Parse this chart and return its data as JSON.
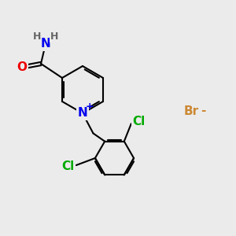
{
  "bg_color": "#ebebeb",
  "bond_color": "#000000",
  "bond_width": 1.5,
  "atom_colors": {
    "N": "#0000ee",
    "O": "#ee0000",
    "Cl": "#00aa00",
    "Br": "#cc8833",
    "H": "#666666",
    "C": "#000000"
  },
  "font_size_atom": 11,
  "font_size_small": 9,
  "font_size_br": 11
}
